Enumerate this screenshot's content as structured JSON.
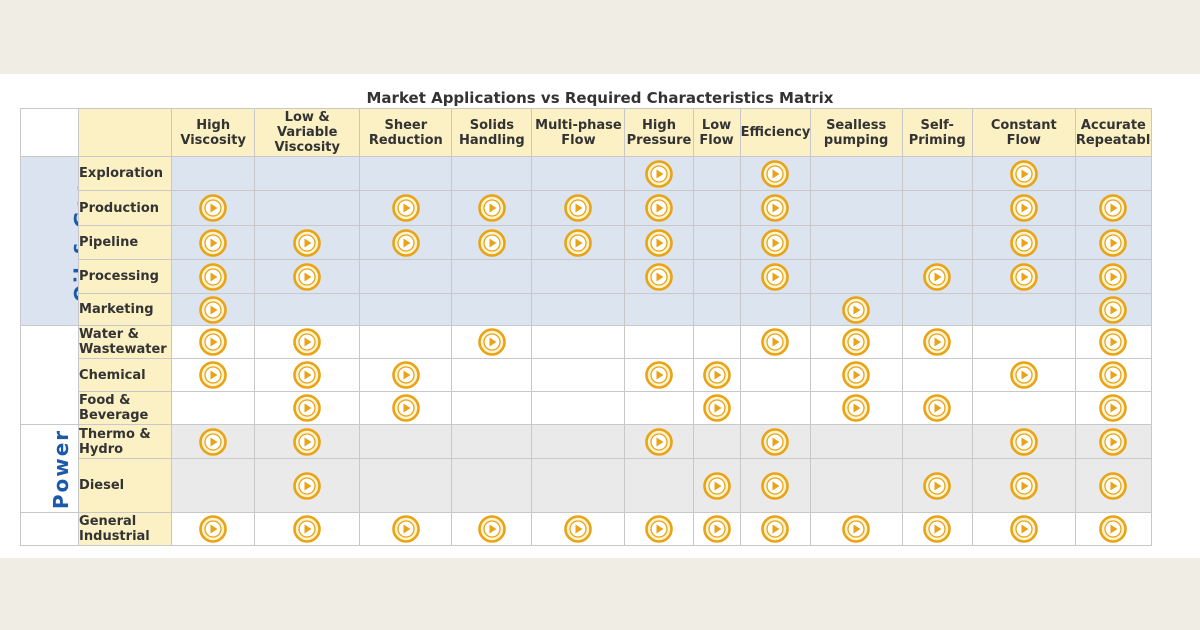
{
  "title": "Market Applications vs Required Characteristics Matrix",
  "columns": [
    "High Viscosity",
    "Low & Variable Viscosity",
    "Sheer Reduction",
    "Solids Handling",
    "Multi-phase Flow",
    "High Pressure",
    "Low Flow",
    "Efficiency",
    "Sealless pumping",
    "Self-Priming",
    "Constant Flow",
    "Accurate Repeatable"
  ],
  "sectors": [
    {
      "label": "Oil & Gas",
      "rows": 5
    },
    {
      "label": "",
      "rows": 3
    },
    {
      "label": "Power",
      "rows": 2
    },
    {
      "label": "",
      "rows": 1
    }
  ],
  "rows": [
    {
      "label": "Exploration",
      "marks": [
        0,
        0,
        0,
        0,
        0,
        1,
        0,
        1,
        0,
        0,
        1,
        0
      ]
    },
    {
      "label": "Production",
      "marks": [
        1,
        0,
        1,
        1,
        1,
        1,
        0,
        1,
        0,
        0,
        1,
        1
      ]
    },
    {
      "label": "Pipeline",
      "marks": [
        1,
        1,
        1,
        1,
        1,
        1,
        0,
        1,
        0,
        0,
        1,
        1
      ]
    },
    {
      "label": "Processing",
      "marks": [
        1,
        1,
        0,
        0,
        0,
        1,
        0,
        1,
        0,
        1,
        1,
        1
      ]
    },
    {
      "label": "Marketing",
      "marks": [
        1,
        0,
        0,
        0,
        0,
        0,
        0,
        0,
        1,
        0,
        0,
        1
      ]
    },
    {
      "label": "Water & Wastewater",
      "marks": [
        1,
        1,
        0,
        1,
        0,
        0,
        0,
        1,
        1,
        1,
        0,
        1
      ]
    },
    {
      "label": "Chemical",
      "marks": [
        1,
        1,
        1,
        0,
        0,
        1,
        1,
        0,
        1,
        0,
        1,
        1
      ]
    },
    {
      "label": "Food & Beverage",
      "marks": [
        0,
        1,
        1,
        0,
        0,
        0,
        1,
        0,
        1,
        1,
        0,
        1
      ]
    },
    {
      "label": "Thermo & Hydro",
      "marks": [
        1,
        1,
        0,
        0,
        0,
        1,
        0,
        1,
        0,
        0,
        1,
        1
      ]
    },
    {
      "label": "Diesel",
      "marks": [
        0,
        1,
        0,
        0,
        0,
        0,
        1,
        1,
        0,
        1,
        1,
        1
      ]
    },
    {
      "label": "General Industrial",
      "marks": [
        1,
        1,
        1,
        1,
        1,
        1,
        1,
        1,
        1,
        1,
        1,
        1
      ]
    }
  ],
  "colors": {
    "mark_ring": "#e8a317",
    "mark_fill": "#fff4d0",
    "sector_text": "#1a5aa8"
  },
  "icon": "play-circle-icon"
}
